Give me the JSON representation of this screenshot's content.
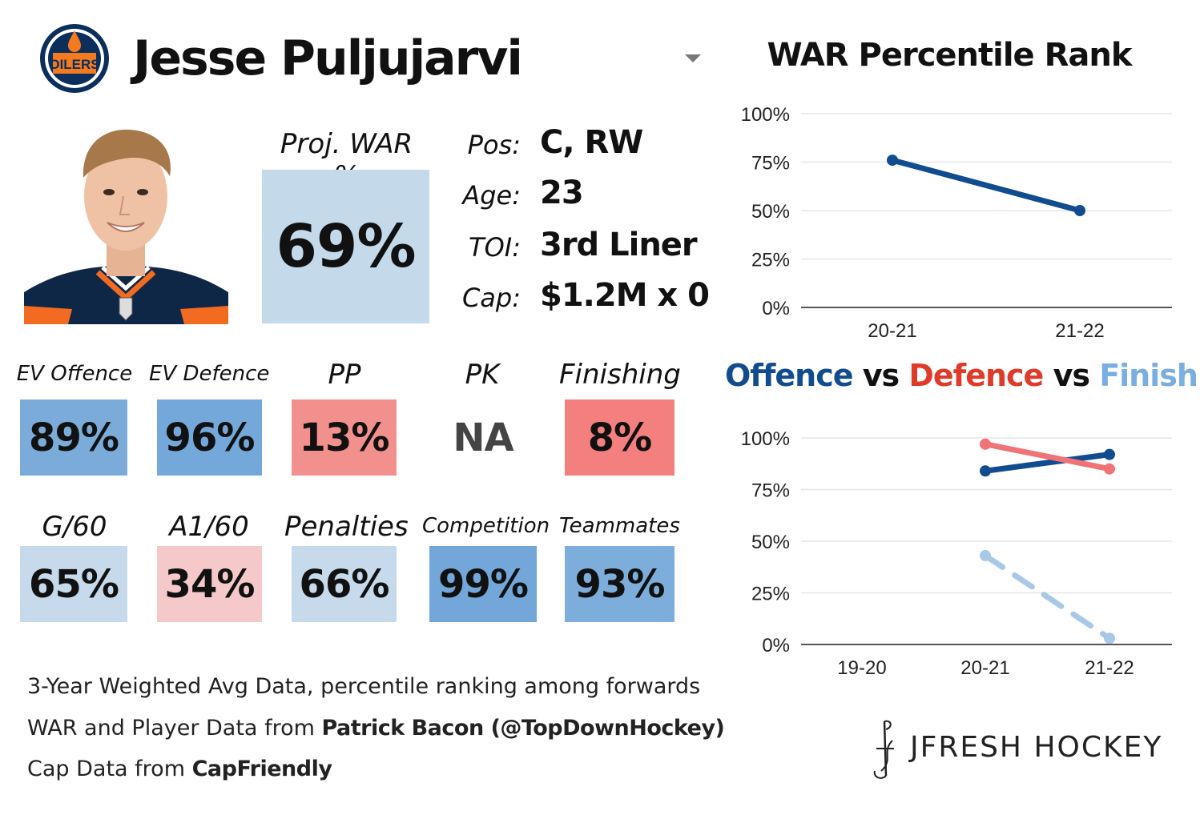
{
  "header": {
    "player_name": "Jesse Puljujarvi",
    "team_logo_text": "OILERS"
  },
  "projection": {
    "label": "Proj. WAR %",
    "value": "69%"
  },
  "info": [
    {
      "label": "Pos:",
      "value": "C, RW"
    },
    {
      "label": "Age:",
      "value": "23"
    },
    {
      "label": "TOI:",
      "value": "3rd Liner"
    },
    {
      "label": "Cap:",
      "value": "$1.2M x 0"
    }
  ],
  "stats_row1": [
    {
      "label": "EV Offence",
      "value": "89%",
      "color": "#7bacd9"
    },
    {
      "label": "EV Defence",
      "value": "96%",
      "color": "#75a8da"
    },
    {
      "label": "PP",
      "value": "13%",
      "color": "#f2908d"
    },
    {
      "label": "PK",
      "value": "NA",
      "color": "#ffffff"
    },
    {
      "label": "Finishing",
      "value": "8%",
      "color": "#f37f7e"
    }
  ],
  "stats_row2": [
    {
      "label": "G/60",
      "value": "65%",
      "color": "#c6daec"
    },
    {
      "label": "A1/60",
      "value": "34%",
      "color": "#f5c9ca"
    },
    {
      "label": "Penalties",
      "value": "66%",
      "color": "#c6daec"
    },
    {
      "label": "Competition",
      "value": "99%",
      "color": "#73a7da"
    },
    {
      "label": "Teammates",
      "value": "93%",
      "color": "#7dadda"
    }
  ],
  "footer": {
    "line1": "3-Year Weighted Avg Data, percentile ranking among forwards",
    "line2_prefix": "WAR and Player Data from ",
    "line2_bold": "Patrick Bacon (@TopDownHockey)",
    "line3_prefix": "Cap Data from ",
    "line3_bold": "CapFriendly"
  },
  "brand": "JFRESH HOCKEY",
  "colors": {
    "offence": "#114c8f",
    "defence": "#e03a2a",
    "defence_line": "#f07377",
    "finishing": "#7aaee0",
    "finishing_line": "#a8c8e6"
  },
  "chart_data": [
    {
      "type": "line",
      "title": "WAR Percentile Rank",
      "x": [
        "20-21",
        "21-22"
      ],
      "ylim": [
        0,
        100
      ],
      "yticks": [
        "0%",
        "25%",
        "50%",
        "75%",
        "100%"
      ],
      "series": [
        {
          "values": [
            76,
            50
          ],
          "color": "#114c8f"
        }
      ],
      "grid": true
    },
    {
      "type": "line",
      "title_parts": [
        {
          "text": "Offence",
          "color": "#114c8f"
        },
        {
          "text": " vs ",
          "color": "#111111"
        },
        {
          "text": "Defence",
          "color": "#e03a2a"
        },
        {
          "text": " vs ",
          "color": "#111111"
        },
        {
          "text": "Finishing",
          "color": "#7aaee0"
        }
      ],
      "x": [
        "19-20",
        "20-21",
        "21-22"
      ],
      "ylim": [
        0,
        100
      ],
      "yticks": [
        "0%",
        "25%",
        "50%",
        "75%",
        "100%"
      ],
      "series": [
        {
          "name": "Offence",
          "values": [
            null,
            84,
            92
          ],
          "color": "#114c8f",
          "dash": false
        },
        {
          "name": "Defence",
          "values": [
            null,
            97,
            85
          ],
          "color": "#f07377",
          "dash": false
        },
        {
          "name": "Finishing",
          "values": [
            null,
            43,
            3
          ],
          "color": "#a8c8e6",
          "dash": true
        }
      ],
      "grid": true
    }
  ]
}
